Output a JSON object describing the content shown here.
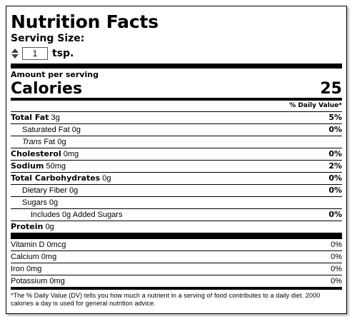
{
  "label": {
    "title": "Nutrition Facts",
    "serving_size_label": "Serving Size:",
    "serving_quantity": "1",
    "serving_unit": "tsp.",
    "amount_per_serving": "Amount per serving",
    "calories_label": "Calories",
    "calories_value": "25",
    "daily_value_header": "% Daily Value*"
  },
  "nutrients": [
    {
      "name": "Total Fat",
      "amount": "3g",
      "dv": "5%"
    },
    {
      "name": "Saturated Fat",
      "amount": "0g",
      "dv": "0%"
    },
    {
      "name": "Trans",
      "name_suffix": "Fat",
      "amount": "0g",
      "dv": ""
    },
    {
      "name": "Cholesterol",
      "amount": "0mg",
      "dv": "0%"
    },
    {
      "name": "Sodium",
      "amount": "50mg",
      "dv": "2%"
    },
    {
      "name": "Total Carbohydrates",
      "amount": "0g",
      "dv": "0%"
    },
    {
      "name": "Dietary Fiber",
      "amount": "0g",
      "dv": "0%"
    },
    {
      "name": "Sugars",
      "amount": "0g",
      "dv": ""
    },
    {
      "name": "Includes",
      "amount": "0g",
      "name_suffix": "Added Sugars",
      "dv": "0%"
    },
    {
      "name": "Protein",
      "amount": "0g",
      "dv": ""
    }
  ],
  "vitamins": [
    {
      "name": "Vitamin D",
      "amount": "0mcg",
      "dv": "0%"
    },
    {
      "name": "Calcium",
      "amount": "0mg",
      "dv": "0%"
    },
    {
      "name": "Iron",
      "amount": "0mg",
      "dv": "0%"
    },
    {
      "name": "Potassium",
      "amount": "0mg",
      "dv": "0%"
    }
  ],
  "footnote": "*The % Daily Value (DV) tells you how much a nutrient in a serving of food contributes to a daily diet. 2000 calories a day is used for general nutrition advice."
}
